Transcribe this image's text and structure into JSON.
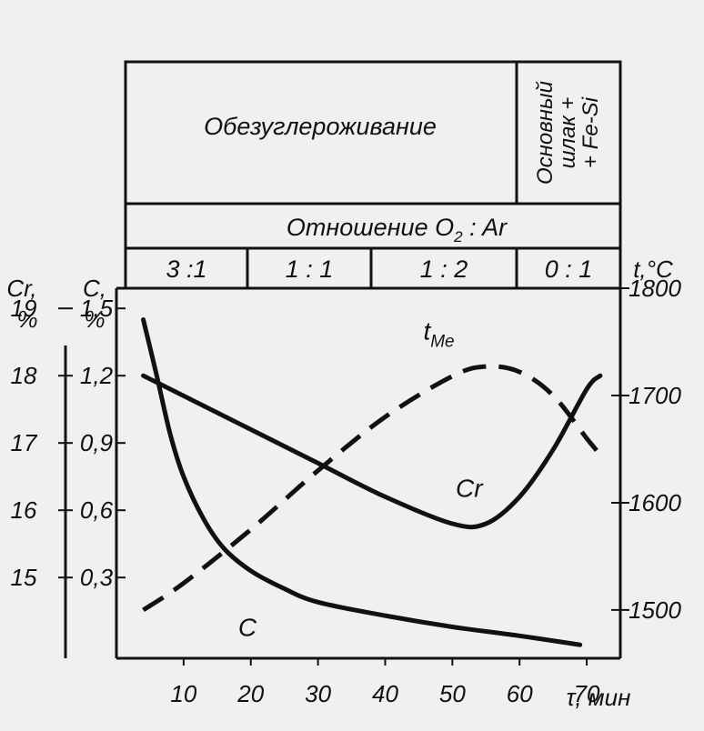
{
  "header": {
    "stage_1": "Обезуглероживание",
    "stage_2_line_1": "Основный",
    "stage_2_line_2": "шлак +",
    "stage_2_line_3": "+ Fe-Si",
    "ratio_title_prefix": "Отношение O",
    "ratio_title_sub": "2",
    "ratio_title_suffix": " : Ar",
    "ratios": [
      "3 :1",
      "1 : 1",
      "1 : 2",
      "0 : 1"
    ]
  },
  "axes": {
    "cr_label": "Cr,",
    "cr_unit": "%",
    "c_label": "C,",
    "c_unit": "%",
    "t_label": "t,°C",
    "x_label": "τ, мин"
  },
  "chart_data": {
    "type": "line",
    "x_ticks": [
      10,
      20,
      30,
      40,
      50,
      60,
      70
    ],
    "cr_ticks": [
      15,
      16,
      17,
      18,
      19
    ],
    "c_ticks": [
      "0,3",
      "0,6",
      "0,9",
      "1,2",
      "1,5"
    ],
    "t_ticks": [
      1500,
      1600,
      1700,
      1800
    ],
    "xlim": [
      0,
      75
    ],
    "cr_lim": [
      13.8,
      19.3
    ],
    "c_lim": [
      -0.06,
      1.59
    ],
    "t_lim": [
      1455,
      1800
    ],
    "series": [
      {
        "name": "Cr",
        "axis": "cr",
        "style": "solid",
        "x": [
          4,
          10,
          20,
          30,
          40,
          50,
          55,
          60,
          65,
          70,
          72
        ],
        "y": [
          18.0,
          17.7,
          17.2,
          16.7,
          16.2,
          15.8,
          15.8,
          16.2,
          16.9,
          17.8,
          18.0
        ]
      },
      {
        "name": "C",
        "axis": "c",
        "style": "solid",
        "x": [
          4,
          6,
          8,
          10,
          13,
          16,
          20,
          25,
          30,
          40,
          50,
          60,
          69
        ],
        "y": [
          1.45,
          1.2,
          0.94,
          0.75,
          0.56,
          0.43,
          0.33,
          0.25,
          0.19,
          0.13,
          0.08,
          0.04,
          0.0
        ]
      },
      {
        "name": "t",
        "label_main": "t",
        "label_sub": "Me",
        "axis": "t",
        "style": "dashed",
        "x": [
          4,
          10,
          20,
          30,
          40,
          50,
          55,
          60,
          65,
          70,
          72
        ],
        "y": [
          1500,
          1525,
          1575,
          1630,
          1680,
          1718,
          1727,
          1722,
          1700,
          1660,
          1645
        ]
      }
    ]
  }
}
